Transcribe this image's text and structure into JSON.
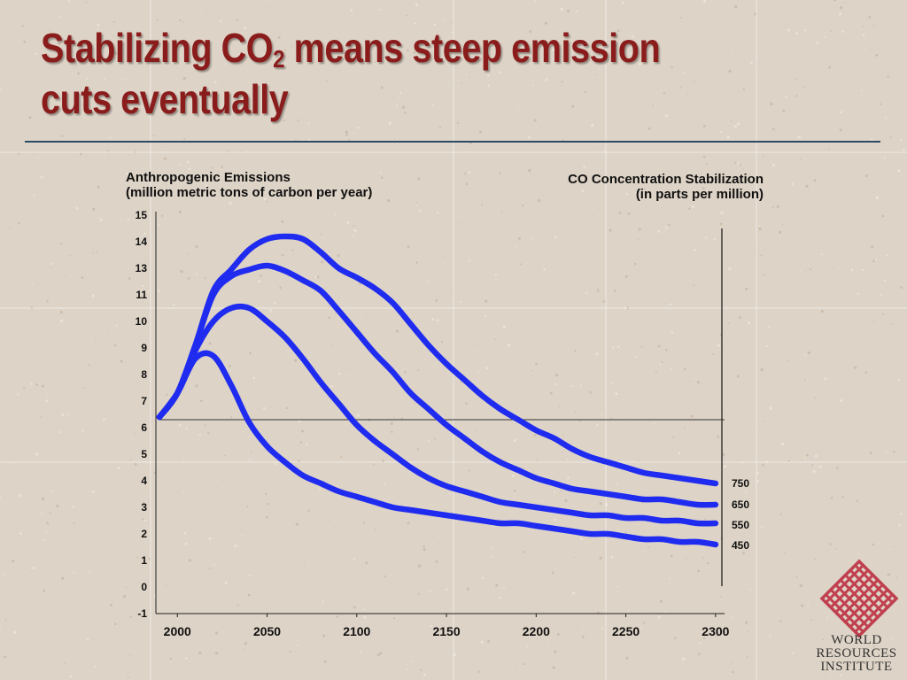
{
  "slide": {
    "title_part1": "Stabilizing CO",
    "title_sub": "2",
    "title_part2": " means steep emission",
    "title_line2": "cuts eventually"
  },
  "logo": {
    "name": "WORLD RESOURCES INSTITUTE",
    "lines": [
      "WORLD",
      "RESOURCES",
      "INSTITUTE"
    ],
    "color": "#c0404f"
  },
  "chart_data": {
    "type": "line",
    "ylabel_line1": "Anthropogenic Emissions",
    "ylabel_line2": "(million metric tons of carbon per year)",
    "legend_title_line1": "CO  Concentration Stabilization",
    "legend_title_line2": "(in parts per million)",
    "xlim": [
      1990,
      2305
    ],
    "x_ticks": [
      2000,
      2050,
      2100,
      2150,
      2200,
      2250,
      2300
    ],
    "y_ticks": [
      "15",
      "14",
      "13",
      "11",
      "10",
      "9",
      "8",
      "7",
      "6",
      "5",
      "4",
      "3",
      "2",
      "1",
      "0",
      "-1"
    ],
    "reference_line_y": 6.3,
    "series_color": "#1f2cf0",
    "series": [
      {
        "name": "750",
        "x": [
          1990,
          2000,
          2010,
          2020,
          2030,
          2040,
          2050,
          2060,
          2070,
          2080,
          2090,
          2100,
          2110,
          2120,
          2130,
          2140,
          2150,
          2160,
          2170,
          2180,
          2190,
          2200,
          2210,
          2220,
          2230,
          2240,
          2250,
          2260,
          2270,
          2280,
          2290,
          2300
        ],
        "y": [
          6.4,
          7.3,
          9.1,
          11.3,
          12.9,
          13.7,
          14.1,
          14.2,
          14.1,
          13.6,
          13.0,
          12.3,
          11.5,
          10.7,
          9.9,
          9.1,
          8.4,
          7.8,
          7.2,
          6.7,
          6.3,
          5.9,
          5.6,
          5.2,
          4.9,
          4.7,
          4.5,
          4.3,
          4.2,
          4.1,
          4.0,
          3.9
        ]
      },
      {
        "name": "650",
        "x": [
          1990,
          2000,
          2010,
          2020,
          2030,
          2040,
          2050,
          2060,
          2070,
          2080,
          2090,
          2100,
          2110,
          2120,
          2130,
          2140,
          2150,
          2160,
          2170,
          2180,
          2190,
          2200,
          2210,
          2220,
          2230,
          2240,
          2250,
          2260,
          2270,
          2280,
          2290,
          2300
        ],
        "y": [
          6.4,
          7.3,
          9.1,
          11.0,
          12.4,
          12.9,
          13.1,
          12.8,
          12.1,
          11.3,
          10.4,
          9.6,
          8.8,
          8.1,
          7.3,
          6.7,
          6.1,
          5.6,
          5.1,
          4.7,
          4.4,
          4.1,
          3.9,
          3.7,
          3.6,
          3.5,
          3.4,
          3.3,
          3.3,
          3.2,
          3.1,
          3.1
        ]
      },
      {
        "name": "550",
        "x": [
          1990,
          2000,
          2010,
          2020,
          2030,
          2040,
          2050,
          2060,
          2070,
          2080,
          2090,
          2100,
          2110,
          2120,
          2130,
          2140,
          2150,
          2160,
          2170,
          2180,
          2190,
          2200,
          2210,
          2220,
          2230,
          2240,
          2250,
          2260,
          2270,
          2280,
          2290,
          2300
        ],
        "y": [
          6.4,
          7.3,
          8.9,
          10.0,
          10.5,
          10.5,
          10.0,
          9.4,
          8.6,
          7.7,
          6.9,
          6.1,
          5.5,
          5.0,
          4.5,
          4.1,
          3.8,
          3.6,
          3.4,
          3.2,
          3.1,
          3.0,
          2.9,
          2.8,
          2.7,
          2.7,
          2.6,
          2.6,
          2.5,
          2.5,
          2.4,
          2.4
        ]
      },
      {
        "name": "450",
        "x": [
          1990,
          2000,
          2010,
          2020,
          2030,
          2040,
          2050,
          2060,
          2070,
          2080,
          2090,
          2100,
          2110,
          2120,
          2130,
          2140,
          2150,
          2160,
          2170,
          2180,
          2190,
          2200,
          2210,
          2220,
          2230,
          2240,
          2250,
          2260,
          2270,
          2280,
          2290,
          2300
        ],
        "y": [
          6.4,
          7.3,
          8.6,
          8.7,
          7.6,
          6.2,
          5.3,
          4.7,
          4.2,
          3.9,
          3.6,
          3.4,
          3.2,
          3.0,
          2.9,
          2.8,
          2.7,
          2.6,
          2.5,
          2.4,
          2.4,
          2.3,
          2.2,
          2.1,
          2.0,
          2.0,
          1.9,
          1.8,
          1.8,
          1.7,
          1.7,
          1.6
        ]
      }
    ]
  }
}
